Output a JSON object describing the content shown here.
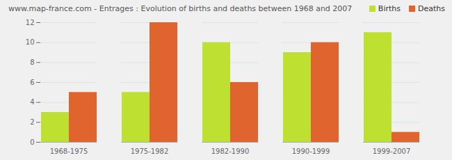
{
  "chart_data": {
    "type": "bar",
    "title": "www.map-france.com - Entrages : Evolution of births and deaths between 1968 and 2007",
    "categories": [
      "1968-1975",
      "1975-1982",
      "1982-1990",
      "1990-1999",
      "1999-2007"
    ],
    "series": [
      {
        "name": "Births",
        "color": "#bde031",
        "values": [
          3,
          5,
          10,
          9,
          11
        ]
      },
      {
        "name": "Deaths",
        "color": "#e0642e",
        "values": [
          5,
          12,
          6,
          10,
          1
        ]
      }
    ],
    "ylim": [
      0,
      12
    ],
    "yticks": [
      0,
      2,
      4,
      6,
      8,
      10,
      12
    ],
    "grid": true,
    "legend": "top-right"
  }
}
